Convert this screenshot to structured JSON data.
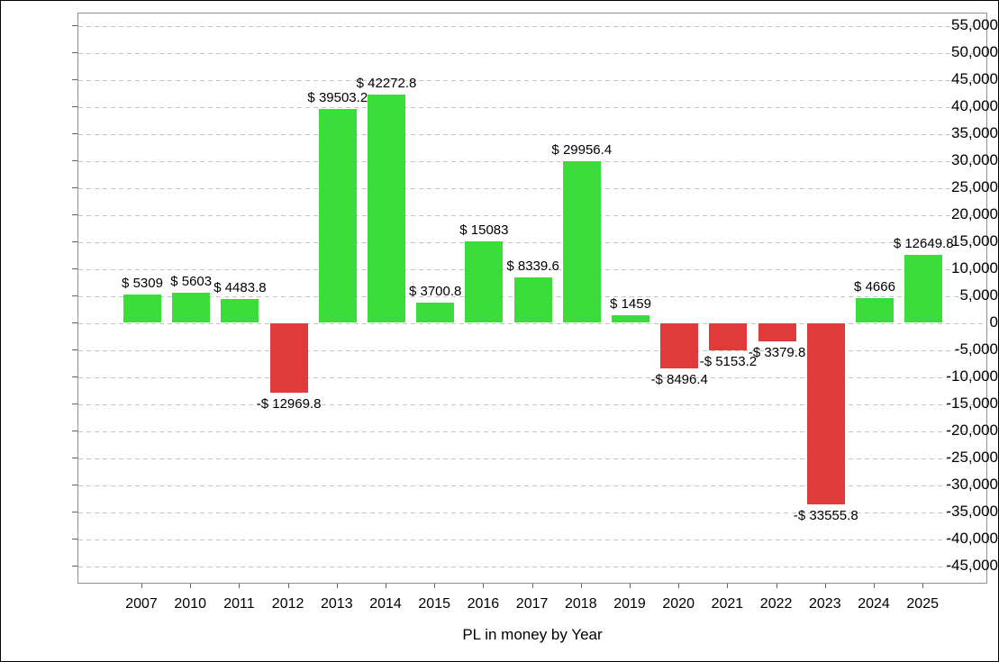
{
  "colors": {
    "positive_bar": "#3BDD3B",
    "negative_bar": "#E03A3A",
    "gridline": "#C4C4C4",
    "plot_border": "#909090",
    "tick": "#666666",
    "text": "#000000"
  },
  "chart_data": {
    "type": "bar",
    "title": "",
    "xlabel": "PL in money by Year",
    "ylabel": "",
    "categories": [
      "2007",
      "2010",
      "2011",
      "2012",
      "2013",
      "2014",
      "2015",
      "2016",
      "2017",
      "2018",
      "2019",
      "2020",
      "2021",
      "2022",
      "2023",
      "2024",
      "2025"
    ],
    "values": [
      5309,
      5603,
      4483.8,
      -12969.8,
      39503.2,
      42272.8,
      3700.8,
      15083,
      8339.6,
      29956.4,
      1459,
      -8496.4,
      -5153.2,
      -3379.8,
      -33555.8,
      4666,
      12649.8
    ],
    "value_labels": [
      "$ 5309",
      "$ 5603",
      "$ 4483.8",
      "-$ 12969.8",
      "$ 39503.2",
      "$ 42272.8",
      "$ 3700.8",
      "$ 15083",
      "$ 8339.6",
      "$ 29956.4",
      "$ 1459",
      "-$ 8496.4",
      "-$ 5153.2",
      "-$ 3379.8",
      "-$ 33555.8",
      "$ 4666",
      "$ 12649.8"
    ],
    "ylim": [
      -45000,
      55000
    ],
    "ytick_step": 5000,
    "ytick_labels": [
      "55,000",
      "50,000",
      "45,000",
      "40,000",
      "35,000",
      "30,000",
      "25,000",
      "20,000",
      "15,000",
      "10,000",
      "5,000",
      "0",
      "-5,000",
      "-10,000",
      "-15,000",
      "-20,000",
      "-25,000",
      "-30,000",
      "-35,000",
      "-40,000",
      "-45,000"
    ],
    "grid": true,
    "grid_style": "dashed",
    "legend": "none"
  }
}
